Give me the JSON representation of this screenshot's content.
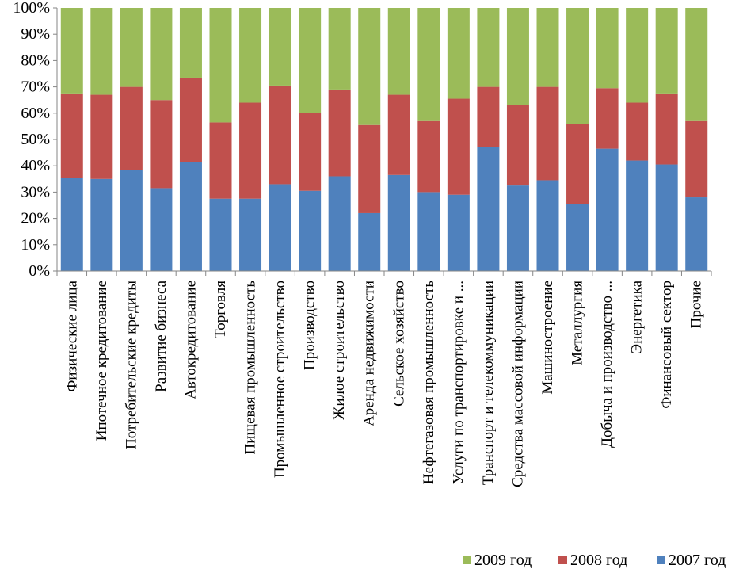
{
  "chart_data": {
    "type": "bar",
    "stacked": "percent",
    "title": "",
    "xlabel": "",
    "ylabel": "",
    "ylim": [
      0,
      100
    ],
    "y_ticks": [
      "0%",
      "10%",
      "20%",
      "30%",
      "40%",
      "50%",
      "60%",
      "70%",
      "80%",
      "90%",
      "100%"
    ],
    "grid": false,
    "legend_position": "bottom-right",
    "categories": [
      "Физические лица",
      "Ипотечное кредитование",
      "Потребительские кредиты",
      "Развитие бизнеса",
      "Автокредитование",
      "Торговля",
      "Пищевая промышленность",
      "Промышленное строительство",
      "Производство",
      "Жилое строительство",
      "Аренда недвижимости",
      "Сельское хозяйство",
      "Нефтегазовая промышленность",
      "Услуги по транспортировке и ...",
      "Транспорт и телекоммуникации",
      "Средства массовой информации",
      "Машиностроение",
      "Металлургия",
      "Добыча и производство ...",
      "Энергетика",
      "Финансовый сектор",
      "Прочие"
    ],
    "series": [
      {
        "name": "2007 год",
        "color": "#4f81bd",
        "values": [
          35.5,
          35,
          38.5,
          31.5,
          41.5,
          27.5,
          27.5,
          33,
          30.5,
          36,
          22,
          36.5,
          30,
          29,
          47,
          32.5,
          34.5,
          25.5,
          46.5,
          42,
          40.5,
          28
        ]
      },
      {
        "name": "2008 год",
        "color": "#c0504d",
        "values": [
          32,
          32,
          31.5,
          33.5,
          32,
          29,
          36.5,
          37.5,
          29.5,
          33,
          33.5,
          30.5,
          27,
          36.5,
          23,
          30.5,
          35.5,
          30.5,
          23,
          22,
          27,
          29
        ]
      },
      {
        "name": "2009 год",
        "color": "#9bbb59",
        "values": [
          32.5,
          33,
          30,
          35,
          26.5,
          43.5,
          36,
          29.5,
          40,
          31,
          44.5,
          33,
          43,
          34.5,
          30,
          37,
          30,
          44,
          30.5,
          36,
          32.5,
          43
        ]
      }
    ]
  }
}
